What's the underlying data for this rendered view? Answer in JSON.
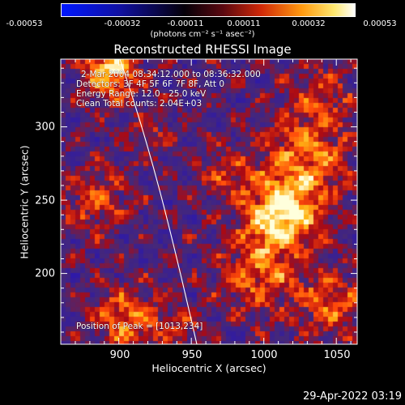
{
  "colorbar": {
    "tick_labels": [
      "-0.00053",
      "-0.00032",
      "-0.00011",
      "0.00011",
      "0.00032",
      "0.00053"
    ],
    "units_label": "(photons cm⁻² s⁻¹ asec⁻²)"
  },
  "plot": {
    "title": "Reconstructed RHESSI Image",
    "info_lines": [
      " 2-Mar-2004 08:34:12.000 to 08:36:32.000",
      "Detectors: 3F 4F 5F 6F 7F 8F, Att 0",
      "Energy Range: 12.0 - 25.0 keV",
      "Clean    Total counts: 2.04E+03"
    ],
    "peak_label": "Position of Peak = [1013,234]",
    "x_axis": {
      "label": "Heliocentric X (arcsec)",
      "ticks": [
        "900",
        "950",
        "1000",
        "1050"
      ],
      "range": [
        860,
        1055
      ]
    },
    "y_axis": {
      "label": "Heliocentric Y (arcsec)",
      "ticks": [
        "200",
        "250",
        "300"
      ],
      "range": [
        150,
        340
      ]
    }
  },
  "footer": {
    "timestamp": "29-Apr-2022 03:19"
  },
  "colors": {
    "low": "#0000ff",
    "mid": "#000000",
    "high": "#ffffff"
  }
}
